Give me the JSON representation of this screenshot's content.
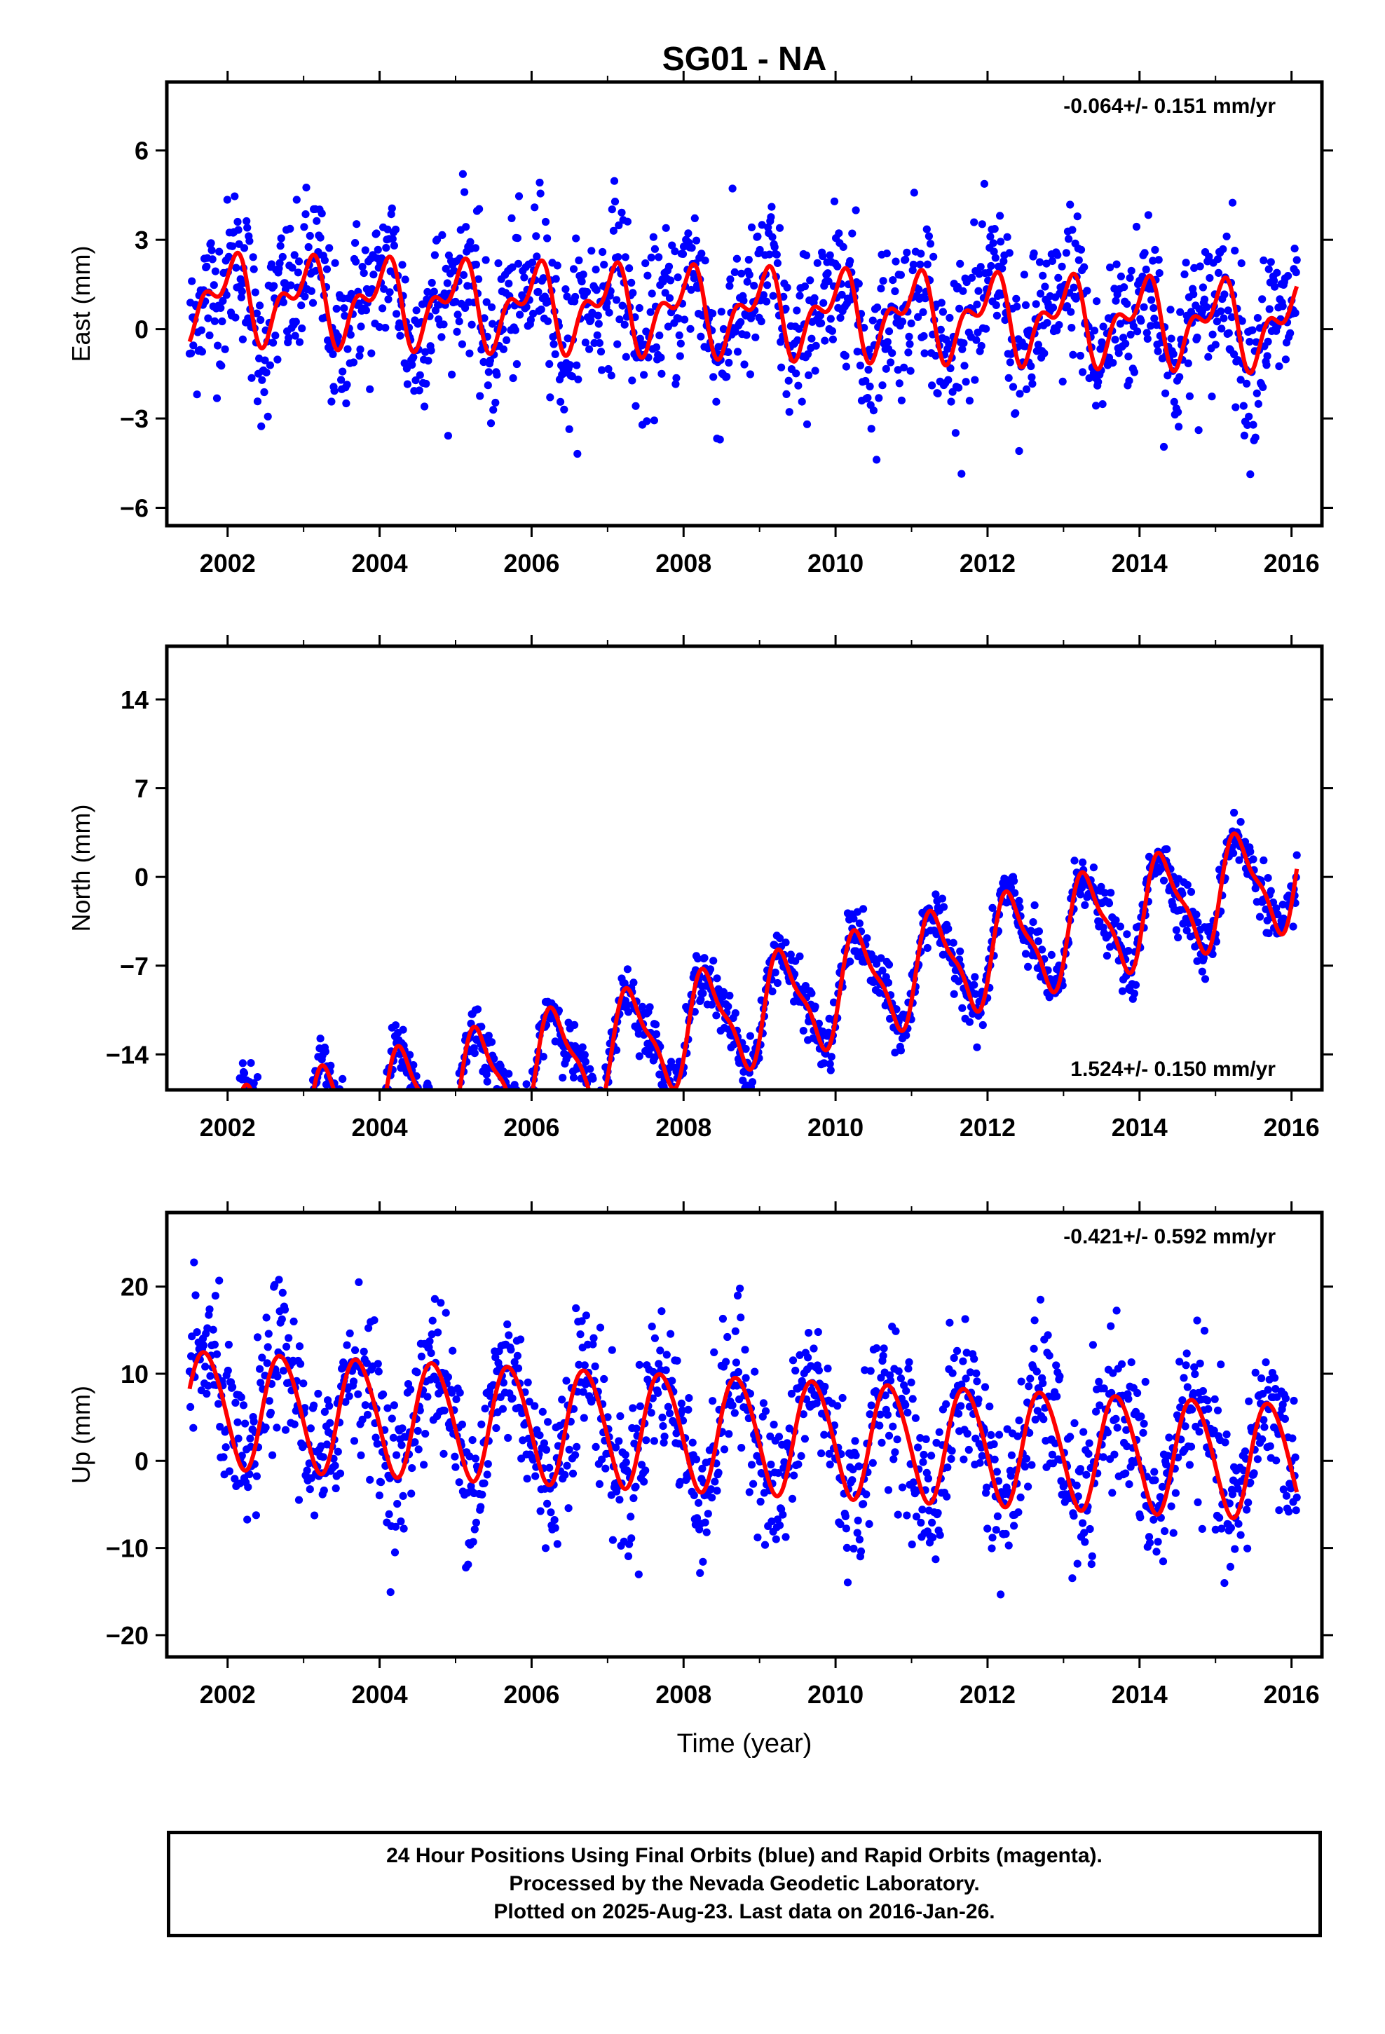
{
  "title": "SG01 - NA",
  "xlabel": "Time (year)",
  "colors": {
    "points": "#0000ff",
    "model": "#ff0000",
    "frame": "#000000"
  },
  "footer": {
    "line1": "24 Hour Positions Using Final Orbits (blue) and Rapid Orbits (magenta).",
    "line2": "Processed by the Nevada Geodetic Laboratory.",
    "line3": "Plotted on 2025-Aug-23. Last data on 2016-Jan-26."
  },
  "chart_data": [
    {
      "type": "scatter",
      "component": "east",
      "ylabel": "East (mm)",
      "rate_label": "-0.064+/- 0.151 mm/yr",
      "rate_position": "top-right",
      "xlim": [
        2001.2,
        2016.4
      ],
      "ylim": [
        -6.6,
        8.3
      ],
      "xticks": [
        2002,
        2004,
        2006,
        2008,
        2010,
        2012,
        2014,
        2016
      ],
      "xticklabels": [
        "2002",
        "2004",
        "2006",
        "2008",
        "2010",
        "2012",
        "2014",
        "2016"
      ],
      "yticks": [
        -6,
        -3,
        0,
        3,
        6
      ],
      "yticklabels": [
        "−6",
        "−3",
        "0",
        "3",
        "6"
      ],
      "data_start": 2001.5,
      "data_end": 2016.07,
      "model": {
        "offset": 0.6,
        "rate_mm_yr": -0.064,
        "annual_cos": 1.1,
        "annual_sin": 0.2,
        "semiannual_cos": -0.4,
        "semiannual_sin": 0.6
      },
      "scatter_sd": 1.3,
      "series": [
        {
          "name": "24 Hour Positions",
          "color": "#0000ff",
          "kind": "points"
        },
        {
          "name": "model",
          "color": "#ff0000",
          "kind": "line"
        }
      ]
    },
    {
      "type": "scatter",
      "component": "north",
      "ylabel": "North (mm)",
      "rate_label": "1.524+/- 0.150 mm/yr",
      "rate_position": "bottom-right",
      "xlim": [
        2001.2,
        2016.4
      ],
      "ylim": [
        -16.8,
        18.2
      ],
      "xticks": [
        2002,
        2004,
        2006,
        2008,
        2010,
        2012,
        2014,
        2016
      ],
      "xticklabels": [
        "2002",
        "2004",
        "2006",
        "2008",
        "2010",
        "2012",
        "2014",
        "2016"
      ],
      "yticks": [
        -14,
        -7,
        0,
        7,
        14
      ],
      "yticklabels": [
        "−14",
        "−7",
        "0",
        "7",
        "14"
      ],
      "data_start": 2001.5,
      "data_end": 2016.07,
      "model": {
        "offset": -10.5,
        "rate_mm_yr": 1.524,
        "annual_cos": -1.5,
        "annual_sin": 3.6,
        "semiannual_cos": -0.8,
        "semiannual_sin": 0.9
      },
      "scatter_sd": 1.1,
      "series": [
        {
          "name": "24 Hour Positions",
          "color": "#0000ff",
          "kind": "points"
        },
        {
          "name": "model",
          "color": "#ff0000",
          "kind": "line"
        }
      ]
    },
    {
      "type": "scatter",
      "component": "up",
      "ylabel": "Up (mm)",
      "rate_label": "-0.421+/- 0.592 mm/yr",
      "rate_position": "top-right",
      "xlim": [
        2001.2,
        2016.4
      ],
      "ylim": [
        -22.5,
        28.5
      ],
      "xticks": [
        2002,
        2004,
        2006,
        2008,
        2010,
        2012,
        2014,
        2016
      ],
      "xticklabels": [
        "2002",
        "2004",
        "2006",
        "2008",
        "2010",
        "2012",
        "2014",
        "2016"
      ],
      "yticks": [
        -20,
        -10,
        0,
        10,
        20
      ],
      "yticklabels": [
        "−20",
        "−10",
        "0",
        "10",
        "20"
      ],
      "data_start": 2001.5,
      "data_end": 2016.07,
      "model": {
        "offset": 3.0,
        "rate_mm_yr": -0.421,
        "annual_cos": -1.6,
        "annual_sin": -6.4,
        "semiannual_cos": 0.5,
        "semiannual_sin": 0.3
      },
      "scatter_sd": 4.3,
      "series": [
        {
          "name": "24 Hour Positions",
          "color": "#0000ff",
          "kind": "points"
        },
        {
          "name": "model",
          "color": "#ff0000",
          "kind": "line"
        }
      ]
    }
  ]
}
